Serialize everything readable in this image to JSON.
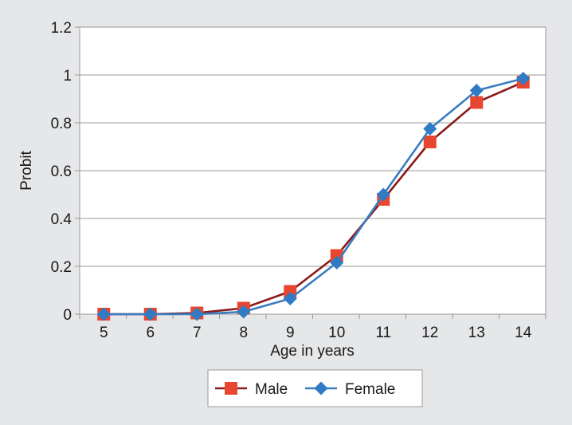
{
  "chart_data": {
    "type": "line",
    "title": "",
    "xlabel": "Age in years",
    "ylabel": "Probit",
    "x": [
      5,
      6,
      7,
      8,
      9,
      10,
      11,
      12,
      13,
      14
    ],
    "ylim": [
      0,
      1.2
    ],
    "yticks": [
      "0",
      "0.2",
      "0.4",
      "0.6",
      "0.8",
      "1",
      "1.2"
    ],
    "grid": true,
    "legend": "bottom",
    "series": [
      {
        "name": "Male",
        "values": [
          0,
          0,
          0.005,
          0.025,
          0.095,
          0.245,
          0.48,
          0.72,
          0.885,
          0.97
        ],
        "line_color": "#8b1a1a",
        "marker_color": "#e8472f",
        "marker": "square"
      },
      {
        "name": "Female",
        "values": [
          0,
          0,
          0,
          0.01,
          0.065,
          0.215,
          0.5,
          0.775,
          0.935,
          0.985
        ],
        "line_color": "#3a7cc0",
        "marker_color": "#2f7bc6",
        "marker": "diamond"
      }
    ]
  }
}
